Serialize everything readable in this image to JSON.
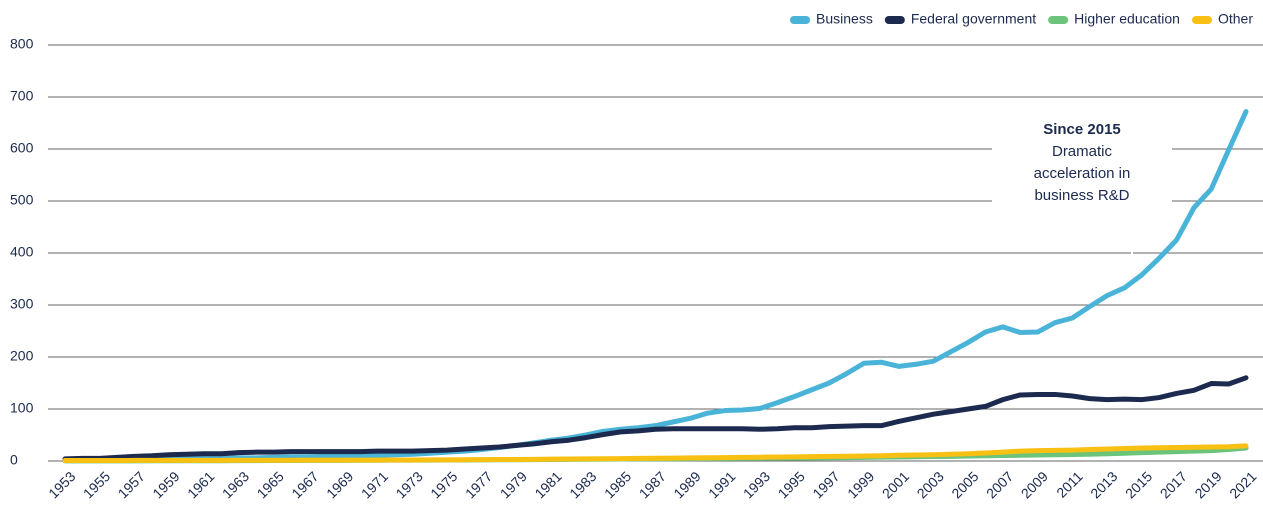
{
  "chart_data": {
    "type": "line",
    "x": [
      1953,
      1954,
      1955,
      1956,
      1957,
      1958,
      1959,
      1960,
      1961,
      1962,
      1963,
      1964,
      1965,
      1966,
      1967,
      1968,
      1969,
      1970,
      1971,
      1972,
      1973,
      1974,
      1975,
      1976,
      1977,
      1978,
      1979,
      1980,
      1981,
      1982,
      1983,
      1984,
      1985,
      1986,
      1987,
      1988,
      1989,
      1990,
      1991,
      1992,
      1993,
      1994,
      1995,
      1996,
      1997,
      1998,
      1999,
      2000,
      2001,
      2002,
      2003,
      2004,
      2005,
      2006,
      2007,
      2008,
      2009,
      2010,
      2011,
      2012,
      2013,
      2014,
      2015,
      2016,
      2017,
      2018,
      2019,
      2020,
      2021
    ],
    "series": [
      {
        "name": "Business",
        "color": "#4ab3d8",
        "values": [
          2,
          2,
          2,
          3,
          3,
          3,
          4,
          4,
          5,
          5,
          6,
          6,
          7,
          8,
          8,
          9,
          10,
          10,
          11,
          12,
          13,
          15,
          17,
          19,
          22,
          26,
          30,
          35,
          40,
          44,
          50,
          57,
          61,
          64,
          68,
          75,
          82,
          92,
          97,
          98,
          101,
          112,
          124,
          137,
          150,
          168,
          188,
          190,
          182,
          186,
          192,
          210,
          228,
          248,
          258,
          247,
          248,
          266,
          275,
          297,
          318,
          333,
          358,
          390,
          425,
          487,
          523,
          598,
          672
        ]
      },
      {
        "name": "Federal government",
        "color": "#1b2a4e",
        "values": [
          4,
          5,
          5,
          7,
          9,
          10,
          12,
          13,
          14,
          14,
          16,
          17,
          17,
          18,
          18,
          18,
          18,
          18,
          19,
          19,
          19,
          20,
          21,
          23,
          25,
          27,
          30,
          33,
          37,
          40,
          45,
          51,
          56,
          58,
          61,
          62,
          62,
          62,
          62,
          62,
          61,
          62,
          64,
          64,
          66,
          67,
          68,
          68,
          76,
          83,
          90,
          95,
          100,
          105,
          118,
          127,
          128,
          128,
          125,
          120,
          118,
          119,
          118,
          122,
          130,
          136,
          149,
          148,
          160
        ]
      },
      {
        "name": "Higher education",
        "color": "#6cc47a",
        "values": [
          0.2,
          0.2,
          0.3,
          0.3,
          0.3,
          0.4,
          0.4,
          0.5,
          0.5,
          0.6,
          0.7,
          0.8,
          0.9,
          1,
          1.1,
          1.2,
          1.3,
          1.4,
          1.5,
          1.6,
          1.7,
          1.8,
          1.9,
          2,
          2.1,
          2.3,
          2.5,
          2.7,
          2.9,
          3.1,
          3.3,
          3.5,
          3.8,
          4,
          4.2,
          4.4,
          4.6,
          4.8,
          5,
          5.2,
          5.4,
          5.6,
          5.8,
          6,
          6.3,
          6.6,
          7,
          7.4,
          7.8,
          8.2,
          8.6,
          9,
          9.5,
          10,
          10.5,
          11,
          11.5,
          12,
          12.5,
          13,
          14,
          15,
          16,
          17,
          18,
          19,
          20,
          22,
          25
        ]
      },
      {
        "name": "Other",
        "color": "#f9c014",
        "values": [
          1,
          1,
          1,
          1,
          1.1,
          1.1,
          1.2,
          1.2,
          1.3,
          1.3,
          1.4,
          1.4,
          1.5,
          1.5,
          1.6,
          1.6,
          1.7,
          1.7,
          1.8,
          1.9,
          2,
          2.1,
          2.2,
          2.4,
          2.6,
          2.8,
          3,
          3.2,
          3.5,
          3.8,
          4,
          4.3,
          4.6,
          5,
          5.3,
          5.6,
          6,
          6.3,
          6.6,
          7,
          7.3,
          7.6,
          8,
          8.4,
          8.8,
          9.2,
          9.7,
          10.2,
          11,
          11.5,
          12,
          13,
          14,
          15.5,
          17,
          19,
          20,
          20.5,
          21,
          22,
          23,
          24,
          25,
          25.5,
          26,
          26.5,
          27,
          27.5,
          29
        ]
      }
    ],
    "xlim": [
      1953,
      2021
    ],
    "xticks": [
      1953,
      1955,
      1957,
      1959,
      1961,
      1963,
      1965,
      1967,
      1969,
      1971,
      1973,
      1975,
      1977,
      1979,
      1981,
      1983,
      1985,
      1987,
      1989,
      1991,
      1993,
      1995,
      1997,
      1999,
      2001,
      2003,
      2005,
      2007,
      2009,
      2011,
      2013,
      2015,
      2017,
      2019,
      2021
    ],
    "ylim": [
      0,
      800
    ],
    "yticks": [
      0,
      100,
      200,
      300,
      400,
      500,
      600,
      700,
      800
    ],
    "grid": true,
    "legend": "top-right",
    "annotation": {
      "title": "Since 2015",
      "lines": [
        "Dramatic",
        "acceleration in",
        "business R&D"
      ]
    }
  }
}
